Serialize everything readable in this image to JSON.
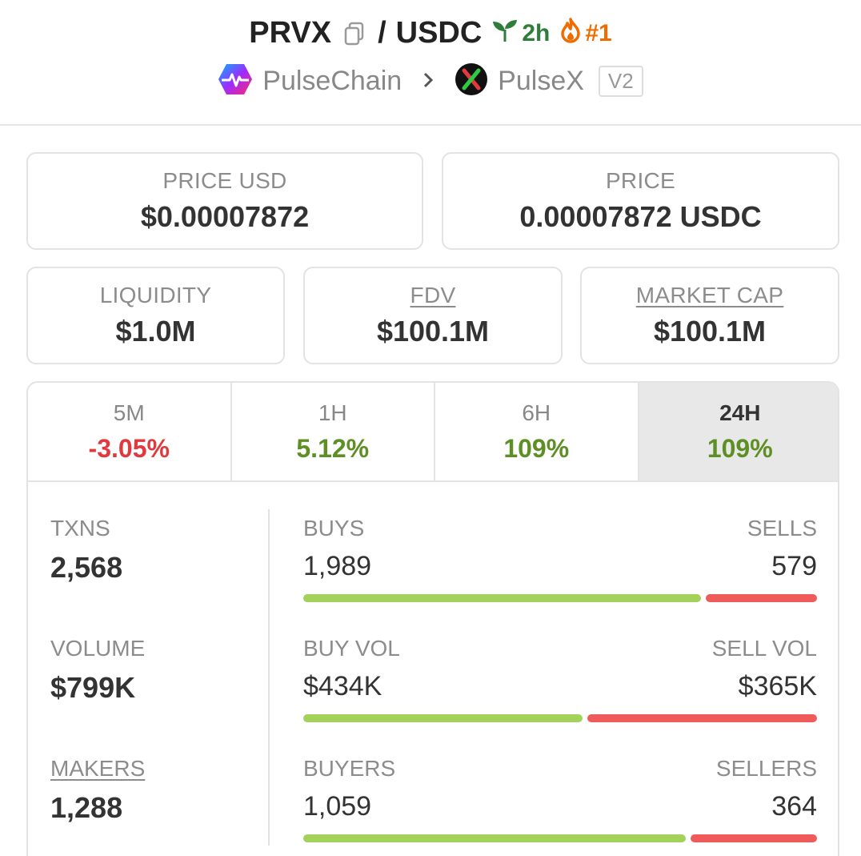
{
  "header": {
    "base_symbol": "PRVX",
    "separator": "/",
    "quote_symbol": "USDC",
    "age": "2h",
    "rank": "#1",
    "chain": "PulseChain",
    "dex": "PulseX",
    "version": "V2"
  },
  "price": {
    "usd_label": "PRICE USD",
    "usd_value": "$0.00007872",
    "native_label": "PRICE",
    "native_value": "0.00007872 USDC"
  },
  "stats": {
    "liquidity_label": "LIQUIDITY",
    "liquidity_value": "$1.0M",
    "fdv_label": "FDV",
    "fdv_value": "$100.1M",
    "mcap_label": "MARKET CAP",
    "mcap_value": "$100.1M"
  },
  "timeframes": [
    {
      "label": "5M",
      "change": "-3.05%",
      "direction": "down"
    },
    {
      "label": "1H",
      "change": "5.12%",
      "direction": "up"
    },
    {
      "label": "6H",
      "change": "109%",
      "direction": "up"
    },
    {
      "label": "24H",
      "change": "109%",
      "direction": "up",
      "active": true
    }
  ],
  "metrics": {
    "txns_label": "TXNS",
    "txns_value": "2,568",
    "volume_label": "VOLUME",
    "volume_value": "$799K",
    "makers_label": "MAKERS",
    "makers_value": "1,288"
  },
  "splits": [
    {
      "left_label": "BUYS",
      "left_value": "1,989",
      "right_label": "SELLS",
      "right_value": "579",
      "buy_ratio": 0.7745
    },
    {
      "left_label": "BUY VOL",
      "left_value": "$434K",
      "right_label": "SELL VOL",
      "right_value": "$365K",
      "buy_ratio": 0.543
    },
    {
      "left_label": "BUYERS",
      "left_value": "1,059",
      "right_label": "SELLERS",
      "right_value": "364",
      "buy_ratio": 0.744
    }
  ],
  "colors": {
    "positive": "#5e8f24",
    "negative": "#e0393e",
    "buy_bar": "#a3d15a",
    "sell_bar": "#ef5b5b",
    "age_green": "#2f7d3a",
    "rank_orange": "#ef6c00"
  },
  "icons": {
    "copy": "copy-icon",
    "seedling": "seedling-icon",
    "flame": "flame-icon",
    "chain_logo": "pulsechain-logo-icon",
    "dex_logo": "pulsex-logo-icon",
    "separator": "chevron-right-icon"
  }
}
